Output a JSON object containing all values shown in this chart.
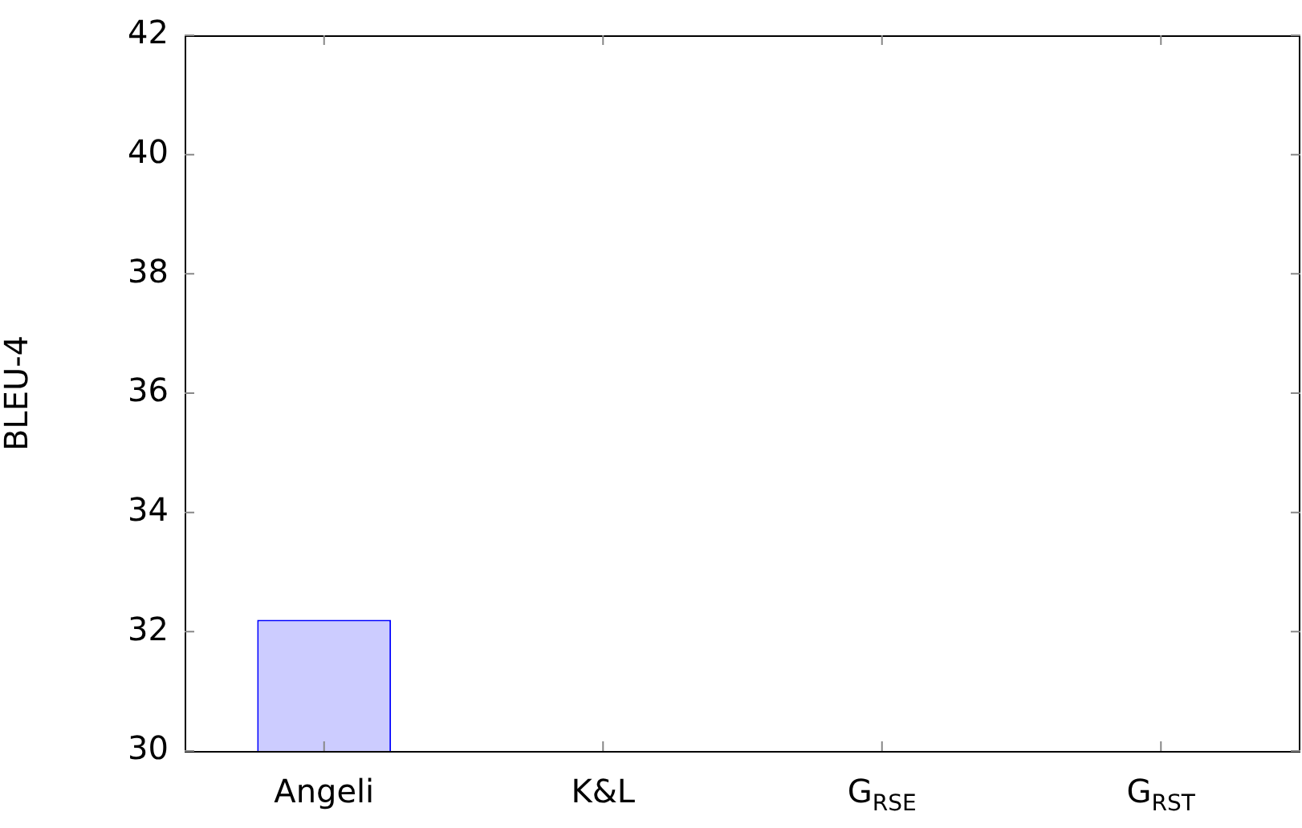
{
  "chart_data": {
    "type": "bar",
    "ylabel": "BLEU-4",
    "categories": [
      "Angeli",
      "K&L",
      "G$_{RSE}$",
      "G$_{RST}$"
    ],
    "values": [
      32.2,
      null,
      null,
      null
    ],
    "color": "#ccccff",
    "ylim": [
      30,
      42
    ],
    "yticks": [
      30,
      32,
      34,
      36,
      38,
      40,
      42
    ],
    "grid": false,
    "legend": false
  }
}
